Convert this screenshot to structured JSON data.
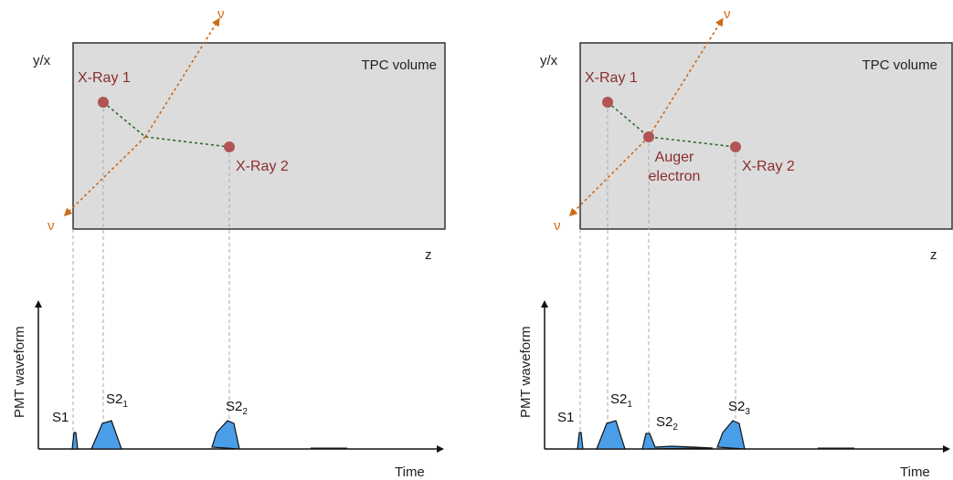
{
  "colors": {
    "tpc_fill": "#dcdcdc",
    "tpc_stroke": "#333333",
    "xray_point": "#b05454",
    "xray_text": "#8b2e2e",
    "neutrino": "#cc6a1a",
    "track": "#2e6b2e",
    "pulse_fill": "#4a9ee8",
    "guide": "#aaaaaa"
  },
  "panels": [
    {
      "id": "left",
      "box_label": "TPC volume",
      "y_axis_label": "y/x",
      "z_axis_label": "z",
      "neutrino_label": "ν",
      "xray1_label": "X-Ray 1",
      "xray2_label": "X-Ray 2",
      "auger_line1": "",
      "auger_line2": "",
      "waveform_ylabel": "PMT waveform",
      "time_label": "Time",
      "s1_label": "S1",
      "s2a": {
        "base": "S2",
        "sub": "1"
      },
      "s2b": {
        "base": "S2",
        "sub": "2"
      },
      "s2c": {
        "base": "",
        "sub": ""
      }
    },
    {
      "id": "right",
      "box_label": "TPC volume",
      "y_axis_label": "y/x",
      "z_axis_label": "z",
      "neutrino_label": "ν",
      "xray1_label": "X-Ray 1",
      "xray2_label": "X-Ray 2",
      "auger_line1": "Auger",
      "auger_line2": "electron",
      "waveform_ylabel": "PMT waveform",
      "time_label": "Time",
      "s1_label": "S1",
      "s2a": {
        "base": "S2",
        "sub": "1"
      },
      "s2b": {
        "base": "S2",
        "sub": "2"
      },
      "s2c": {
        "base": "S2",
        "sub": "3"
      }
    }
  ]
}
